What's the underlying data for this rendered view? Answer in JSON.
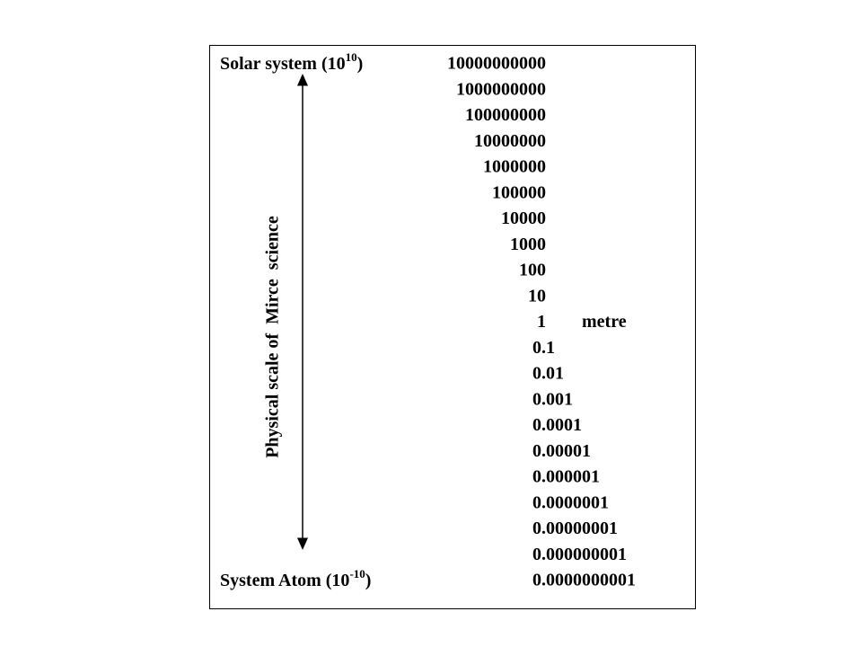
{
  "top_label": {
    "text": "Solar system (10",
    "sup": "10",
    "close": ")"
  },
  "bottom_label": {
    "text": "System Atom (10",
    "sup": "-10",
    "close": ")"
  },
  "axis_label": "Physical scale of  Mirce  science",
  "scale": [
    "10000000000",
    "1000000000",
    "100000000",
    "10000000",
    "1000000",
    "100000",
    "10000",
    "1000",
    "100",
    "10",
    {
      "value": "1",
      "unit": "metre"
    },
    "0.1",
    "0.01",
    "0.001",
    "0.0001",
    "0.00001",
    "0.000001",
    "0.0000001",
    "0.00000001",
    "0.000000001",
    "0.0000000001"
  ]
}
